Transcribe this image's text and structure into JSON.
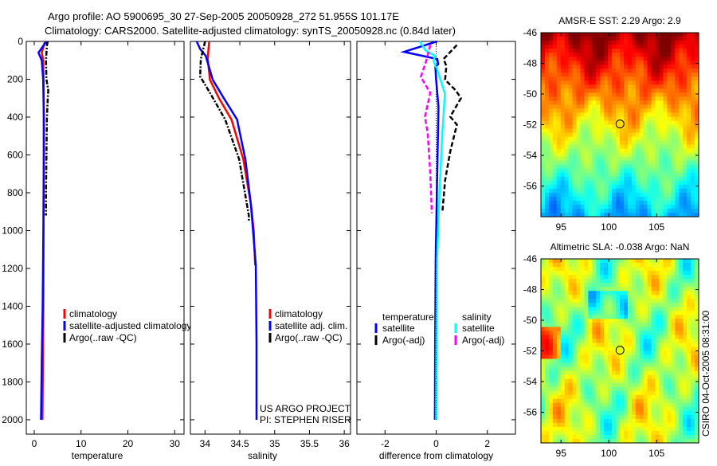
{
  "title": {
    "line1": "Argo profile: AO 5900695_30 27-Sep-2005 20050928_272 51.955S 101.17E",
    "line2": "Climatology: CARS2000. Satellite-adjusted climatology: synTS_20050928.nc (0.84d later)"
  },
  "footer_vertical": "CSIRO 04-Oct-2005 08:31:00",
  "chart_data": [
    {
      "type": "line",
      "xlabel": "temperature",
      "ylabel": "",
      "xlim": [
        -1.7,
        32
      ],
      "ylim": [
        0,
        2076
      ],
      "y_reversed": true,
      "xticks": [
        0,
        10,
        20,
        30
      ],
      "yticks": [
        0,
        200,
        400,
        600,
        800,
        1000,
        1200,
        1400,
        1600,
        1800,
        2000
      ],
      "legend": [
        {
          "label": "climatology",
          "color": "#ff0000"
        },
        {
          "label": "satellite-adjusted climatology",
          "color": "#0000ff"
        },
        {
          "label": "Argo(..raw -QC)",
          "color": "#000000"
        }
      ],
      "series": [
        {
          "name": "climatology",
          "color": "#ff0000",
          "style": "solid",
          "depth": [
            0,
            60,
            100,
            200,
            400,
            600,
            1000,
            1400,
            1700,
            2000
          ],
          "values": [
            2.3,
            1.6,
            1.9,
            2.0,
            2.05,
            2.05,
            2.0,
            1.95,
            1.85,
            1.75
          ]
        },
        {
          "name": "satellite-adjusted climatology",
          "color": "#0000ff",
          "style": "solid",
          "depth": [
            0,
            60,
            100,
            200,
            400,
            600,
            1000,
            1400,
            1700,
            2000
          ],
          "values": [
            2.6,
            0.9,
            1.6,
            1.9,
            2.05,
            2.05,
            1.95,
            1.8,
            1.6,
            1.45
          ]
        },
        {
          "name": "Argo(..raw -QC)",
          "color": "#000000",
          "style": "dashdot",
          "depth": [
            0,
            20,
            100,
            200,
            260,
            300,
            400,
            600,
            800,
            920
          ],
          "values": [
            2.9,
            2.7,
            2.5,
            2.6,
            3.0,
            2.9,
            2.7,
            2.6,
            2.5,
            2.5
          ]
        }
      ],
      "annotations": []
    },
    {
      "type": "line",
      "xlabel": "salinity",
      "xlim": [
        33.79,
        36.09
      ],
      "ylim": [
        0,
        2076
      ],
      "y_reversed": true,
      "xticks": [
        34,
        34.5,
        35,
        35.5,
        36
      ],
      "xtick_labels": [
        "34",
        "34.5",
        "35",
        "35.5",
        "36"
      ],
      "legend": [
        {
          "label": "climatology",
          "color": "#ff0000"
        },
        {
          "label": "satellite adj. clim.",
          "color": "#0000ff"
        },
        {
          "label": "Argo(..raw -QC)",
          "color": "#000000"
        }
      ],
      "series": [
        {
          "name": "climatology",
          "color": "#ff0000",
          "style": "solid",
          "depth": [
            0,
            40,
            93,
            202,
            300,
            413,
            623,
            863,
            1000,
            1183
          ],
          "values": [
            34.06,
            34.05,
            34.04,
            34.07,
            34.2,
            34.38,
            34.55,
            34.66,
            34.7,
            34.72
          ]
        },
        {
          "name": "satellite adj. clim.",
          "color": "#0000ff",
          "style": "solid",
          "depth": [
            0,
            40,
            76,
            202,
            300,
            413,
            623,
            863,
            1183,
            1600,
            2000
          ],
          "values": [
            33.88,
            33.93,
            34.01,
            34.11,
            34.27,
            34.46,
            34.58,
            34.66,
            34.73,
            34.74,
            34.74
          ]
        },
        {
          "name": "Argo(..raw -QC)",
          "color": "#000000",
          "style": "dashdot",
          "depth": [
            0,
            93,
            185,
            265,
            413,
            623,
            922,
            950
          ],
          "values": [
            34.0,
            33.94,
            33.93,
            34.06,
            34.29,
            34.49,
            34.63,
            34.63
          ]
        }
      ],
      "annotations": [
        "US ARGO PROJECT",
        "PI: STEPHEN RISER"
      ]
    },
    {
      "type": "line",
      "xlabel": "difference from climatology",
      "xlim": [
        -3.1,
        3.1
      ],
      "ylim": [
        0,
        2076
      ],
      "y_reversed": true,
      "xticks": [
        -2,
        0,
        2
      ],
      "xtick_labels": [
        "-2",
        "0",
        "2"
      ],
      "legend_headers": [
        "temperature",
        "salinity"
      ],
      "legend": [
        {
          "label": "satellite",
          "color": "#0000ff",
          "group": 0
        },
        {
          "label": "Argo(-adj)",
          "color": "#000000",
          "group": 0
        },
        {
          "label": "satellite",
          "color": "#00ffff",
          "group": 1
        },
        {
          "label": "Argo(-adj)",
          "color": "#ff00ff",
          "group": 1
        }
      ],
      "series": [
        {
          "name": "temperature satellite",
          "color": "#0000ff",
          "style": "solid",
          "depth": [
            0,
            55,
            76,
            93,
            120,
            135,
            206,
            346,
            767,
            1160,
            1600,
            2000
          ],
          "values": [
            0.03,
            -1.26,
            -0.55,
            0.04,
            0.08,
            -0.03,
            0.0,
            0.09,
            0.03,
            -0.02,
            -0.04,
            -0.05
          ]
        },
        {
          "name": "salinity satellite",
          "color": "#00ffff",
          "style": "solid",
          "depth": [
            0,
            47,
            76,
            104,
            150,
            276,
            486,
            767,
            1160,
            1600,
            2000
          ],
          "values": [
            -0.64,
            -0.42,
            -0.05,
            -0.1,
            0.04,
            0.34,
            0.24,
            0.14,
            0.03,
            0.01,
            0.0
          ]
        },
        {
          "name": "temperature Argo(-adj)",
          "color": "#000000",
          "style": "dashed",
          "depth": [
            19,
            93,
            130,
            202,
            258,
            300,
            398,
            440,
            581,
            735,
            907
          ],
          "values": [
            0.81,
            0.29,
            0.4,
            0.35,
            0.76,
            0.97,
            0.55,
            0.81,
            0.55,
            0.35,
            0.24
          ]
        },
        {
          "name": "salinity Argo(-adj)",
          "color": "#ff00ff",
          "style": "dashed",
          "depth": [
            19,
            104,
            188,
            272,
            398,
            486,
            697,
            907
          ],
          "values": [
            -0.23,
            -0.39,
            -0.6,
            -0.23,
            -0.44,
            -0.33,
            -0.23,
            -0.17
          ]
        },
        {
          "name": "zero line",
          "color": "#000000",
          "style": "dotted",
          "depth": [
            0,
            2000
          ],
          "values": [
            0,
            0
          ]
        }
      ]
    },
    {
      "type": "heatmap",
      "title": "AMSR-E SST: 2.29 Argo: 2.9",
      "xlim": [
        92.9,
        109.4
      ],
      "ylim": [
        -58,
        -46
      ],
      "xticks": [
        95,
        100,
        105
      ],
      "yticks": [
        -46,
        -48,
        -50,
        -52,
        -54,
        -56
      ],
      "marker": {
        "lon": 101.17,
        "lat": -51.955
      },
      "colormap": "jet"
    },
    {
      "type": "heatmap",
      "title": "Altimetric SLA: -0.038 Argo: NaN",
      "xlim": [
        92.9,
        109.4
      ],
      "ylim": [
        -58,
        -46
      ],
      "xticks": [
        95,
        100,
        105
      ],
      "yticks": [
        -46,
        -48,
        -50,
        -52,
        -54,
        -56
      ],
      "marker": {
        "lon": 101.17,
        "lat": -51.955
      },
      "colormap": "jet"
    }
  ]
}
